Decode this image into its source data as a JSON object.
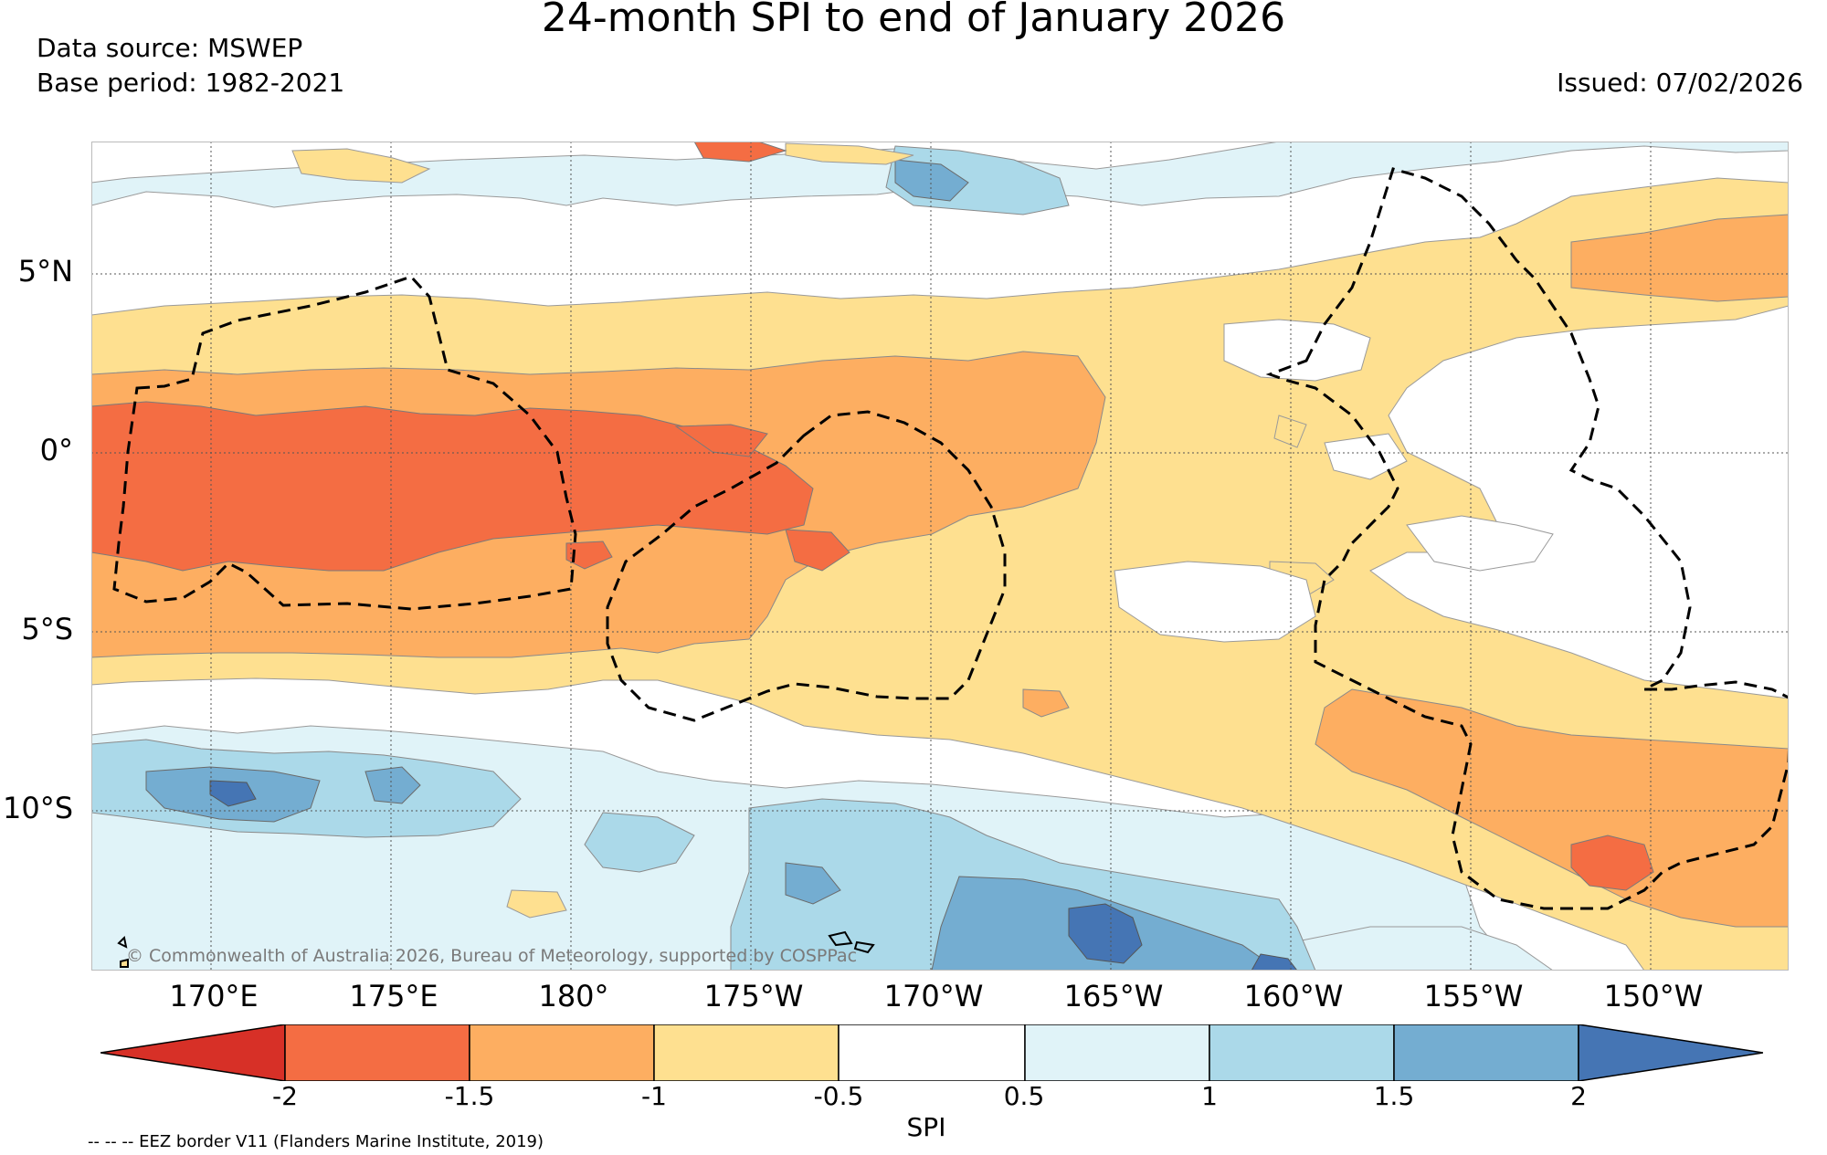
{
  "header": {
    "title": "24-month SPI to end of January 2026",
    "data_source": "Data source: MSWEP",
    "base_period": "Base period: 1982-2021",
    "issued": "Issued: 07/02/2026"
  },
  "axes": {
    "lat_labels": [
      "5°N",
      "0°",
      "5°S",
      "10°S"
    ],
    "lon_labels": [
      "170°E",
      "175°E",
      "180°",
      "175°W",
      "170°W",
      "165°W",
      "160°W",
      "155°W",
      "150°W"
    ]
  },
  "map": {
    "copyright": "© Commonwealth of Australia 2026, Bureau of Meteorology, supported by COSPPac"
  },
  "colorbar": {
    "label": "SPI",
    "ticks": [
      "-2",
      "-1.5",
      "-1",
      "-0.5",
      "0.5",
      "1",
      "1.5",
      "2"
    ],
    "colors": [
      "#d73027",
      "#f46d43",
      "#fdae61",
      "#fee090",
      "#ffffff",
      "#e0f3f8",
      "#abd9e9",
      "#74add1",
      "#4575b4"
    ]
  },
  "footer": {
    "eez_note": "-- -- -- EEZ border V11 (Flanders Marine Institute, 2019)"
  }
}
